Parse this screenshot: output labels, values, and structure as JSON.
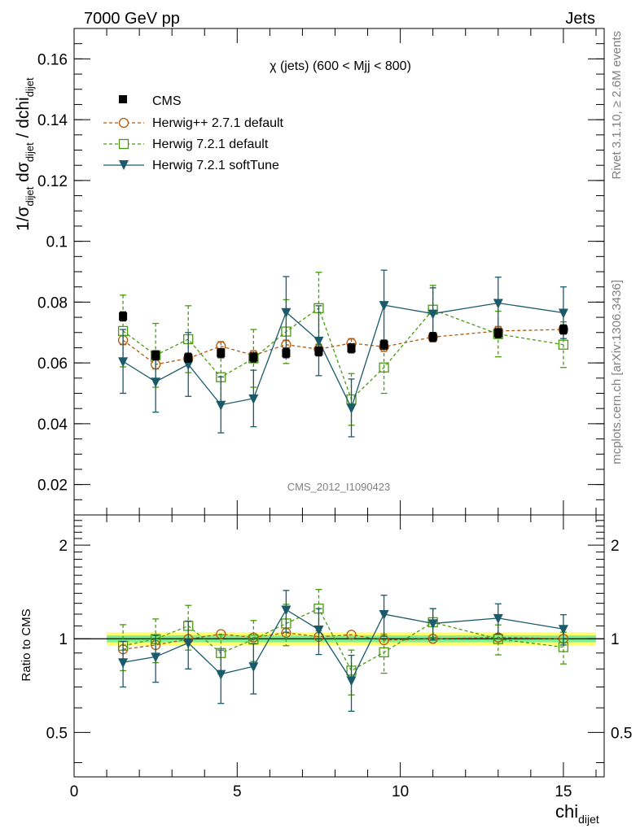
{
  "header": {
    "left": "7000 GeV pp",
    "right": "Jets"
  },
  "side_text": {
    "top": "Rivet 3.1.10, ≥ 2.6M events",
    "bottom": "mcplots.cern.ch [arXiv:1306.3436]"
  },
  "chart_data": [
    {
      "type": "scatter",
      "title": "χ (jets) (600 < Mjj <  800)",
      "watermark": "CMS_2012_I1090423",
      "ylabel": "1/σdijet dσdijet / dchidijet",
      "ylim": [
        0.01,
        0.17
      ],
      "yticks": [
        0.02,
        0.04,
        0.06,
        0.08,
        0.1,
        0.12,
        0.14,
        0.16
      ],
      "ytick_labels": [
        "0.02",
        "0.04",
        "0.06",
        "0.08",
        "0.1",
        "0.12",
        "0.14",
        "0.16"
      ],
      "legend_position": "top-left",
      "x": [
        1.5,
        2.5,
        3.5,
        4.5,
        5.5,
        6.5,
        7.5,
        8.5,
        9.5,
        11,
        13,
        15
      ],
      "series": [
        {
          "name": "CMS",
          "color": "#000000",
          "marker": "filled-square",
          "line": "none",
          "values": [
            0.0753,
            0.0625,
            0.0617,
            0.0632,
            0.0618,
            0.0632,
            0.0638,
            0.0648,
            0.066,
            0.0685,
            0.0698,
            0.071
          ],
          "errors": [
            0.0015,
            0.0015,
            0.0015,
            0.0015,
            0.0015,
            0.0015,
            0.0015,
            0.0015,
            0.0015,
            0.0015,
            0.0015,
            0.0015
          ]
        },
        {
          "name": "Herwig++ 2.7.1 default",
          "color": "#b05a10",
          "marker": "open-circle",
          "line": "dashed",
          "values": [
            0.0675,
            0.0595,
            0.0615,
            0.0655,
            0.0625,
            0.066,
            0.0645,
            0.0665,
            0.0653,
            0.0685,
            0.0705,
            0.071
          ],
          "errors": [
            0.0015,
            0.0015,
            0.0015,
            0.0015,
            0.0015,
            0.0015,
            0.0015,
            0.0015,
            0.0015,
            0.0015,
            0.0015,
            0.0015
          ]
        },
        {
          "name": "Herwig 7.2.1 default",
          "color": "#4a9a10",
          "marker": "open-square",
          "line": "dashed",
          "values": [
            0.0705,
            0.0625,
            0.0678,
            0.0553,
            0.0615,
            0.0703,
            0.078,
            0.048,
            0.0585,
            0.0775,
            0.0695,
            0.066
          ],
          "errors": [
            0.0118,
            0.0105,
            0.011,
            0.008,
            0.0095,
            0.0105,
            0.0118,
            0.0085,
            0.0085,
            0.008,
            0.0075,
            0.0075
          ]
        },
        {
          "name": "Herwig 7.2.1 softTune",
          "color": "#1a5a6a",
          "marker": "filled-triangle-down",
          "line": "solid",
          "values": [
            0.0605,
            0.0538,
            0.0595,
            0.0462,
            0.0483,
            0.0767,
            0.0673,
            0.0452,
            0.079,
            0.0762,
            0.0797,
            0.0765
          ],
          "errors": [
            0.0105,
            0.01,
            0.0105,
            0.0092,
            0.0093,
            0.0117,
            0.0115,
            0.0095,
            0.0115,
            0.0085,
            0.0085,
            0.0085
          ]
        }
      ]
    },
    {
      "type": "scatter",
      "ylabel": "Ratio to CMS",
      "xlabel": "chidijet",
      "ylim": [
        0.36,
        2.5
      ],
      "y_scale": "log",
      "yticks": [
        0.5,
        1,
        2
      ],
      "ytick_labels": [
        "0.5",
        "1",
        "2"
      ],
      "xlim": [
        0,
        16.25
      ],
      "xticks": [
        0,
        5,
        10,
        15
      ],
      "xtick_labels": [
        "0",
        "5",
        "10",
        "15"
      ],
      "x": [
        1.5,
        2.5,
        3.5,
        4.5,
        5.5,
        6.5,
        7.5,
        8.5,
        9.5,
        11,
        13,
        15
      ],
      "band": {
        "xmin": 1.0,
        "xmax": 16.0,
        "yellow": [
          0.95,
          1.05
        ],
        "green": [
          0.975,
          1.025
        ],
        "yellow_color": "#ffff70",
        "green_color": "#80ee90"
      },
      "series": [
        {
          "name": "Herwig++ 2.7.1 default",
          "color": "#b05a10",
          "values": [
            0.925,
            0.955,
            0.998,
            1.035,
            1.01,
            1.045,
            1.015,
            1.03,
            0.99,
            1.0,
            1.01,
            1.0
          ],
          "errors": [
            0,
            0,
            0,
            0,
            0,
            0,
            0,
            0,
            0,
            0,
            0,
            0
          ]
        },
        {
          "name": "Herwig 7.2.1 default",
          "color": "#4a9a10",
          "values": [
            0.95,
            0.998,
            1.1,
            0.9,
            0.995,
            1.12,
            1.25,
            0.79,
            0.905,
            1.13,
            0.998,
            0.94
          ],
          "errors": [
            0.16,
            0.16,
            0.18,
            0.13,
            0.15,
            0.17,
            0.19,
            0.13,
            0.13,
            0.12,
            0.11,
            0.11
          ]
        },
        {
          "name": "Herwig 7.2.1 softTune",
          "color": "#1a5a6a",
          "values": [
            0.84,
            0.875,
            0.97,
            0.77,
            0.815,
            1.24,
            1.07,
            0.735,
            1.2,
            1.12,
            1.165,
            1.075
          ],
          "errors": [
            0.14,
            0.15,
            0.17,
            0.15,
            0.15,
            0.19,
            0.18,
            0.15,
            0.18,
            0.13,
            0.13,
            0.12
          ]
        }
      ]
    }
  ]
}
